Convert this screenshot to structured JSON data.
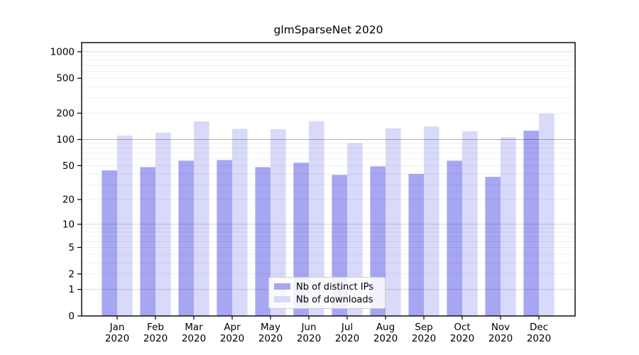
{
  "chart_data": {
    "type": "bar",
    "title": "glmSparseNet 2020",
    "year_label": "2020",
    "months": [
      "Jan",
      "Feb",
      "Mar",
      "Apr",
      "May",
      "Jun",
      "Jul",
      "Aug",
      "Sep",
      "Oct",
      "Nov",
      "Dec"
    ],
    "series": [
      {
        "name": "Nb of distinct IPs",
        "color": "#a6a6f2",
        "values": [
          44,
          48,
          57,
          58,
          48,
          54,
          39,
          49,
          40,
          57,
          37,
          126
        ]
      },
      {
        "name": "Nb of downloads",
        "color": "#d9d9f9",
        "values": [
          111,
          120,
          161,
          132,
          131,
          162,
          91,
          134,
          141,
          124,
          106,
          198
        ]
      }
    ],
    "yticks": [
      0,
      1,
      2,
      5,
      10,
      20,
      50,
      100,
      200,
      500,
      1000
    ],
    "yscale": "log1p",
    "ylim": [
      0,
      1270
    ],
    "grid": true,
    "legend_position": "lower center",
    "colors": {
      "axis": "#000000",
      "grid_minor": "rgba(0,0,0,0.06)",
      "grid_major": "rgba(0,0,0,0.16)",
      "grid_hundred": "rgba(0,0,0,0.32)"
    }
  }
}
